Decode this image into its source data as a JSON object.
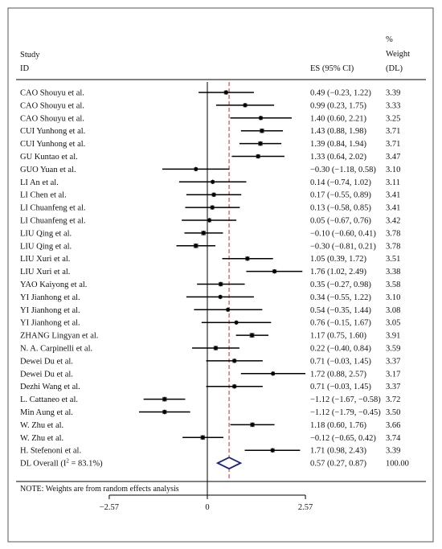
{
  "chart_data": {
    "type": "forest",
    "header": {
      "study": [
        "Study",
        "ID"
      ],
      "es": "ES (95% CI)",
      "weight": [
        "%",
        "Weight",
        "(DL)"
      ]
    },
    "studies": [
      {
        "label": "CAO Shouyu et al.",
        "es": 0.49,
        "lo": -0.23,
        "hi": 1.22,
        "es_text": "0.49 (−0.23, 1.22)",
        "weight": "3.39"
      },
      {
        "label": "CAO Shouyu et al.",
        "es": 0.99,
        "lo": 0.23,
        "hi": 1.75,
        "es_text": "0.99 (0.23, 1.75)",
        "weight": "3.33"
      },
      {
        "label": "CAO Shouyu et al.",
        "es": 1.4,
        "lo": 0.6,
        "hi": 2.21,
        "es_text": "1.40 (0.60, 2.21)",
        "weight": "3.25"
      },
      {
        "label": "CUI Yunhong et al.",
        "es": 1.43,
        "lo": 0.88,
        "hi": 1.98,
        "es_text": "1.43 (0.88, 1.98)",
        "weight": "3.71"
      },
      {
        "label": "CUI Yunhong et al.",
        "es": 1.39,
        "lo": 0.84,
        "hi": 1.94,
        "es_text": "1.39 (0.84, 1.94)",
        "weight": "3.71"
      },
      {
        "label": "GU Kuntao et al.",
        "es": 1.33,
        "lo": 0.64,
        "hi": 2.02,
        "es_text": "1.33 (0.64, 2.02)",
        "weight": "3.47"
      },
      {
        "label": "GUO Yuan et al.",
        "es": -0.3,
        "lo": -1.18,
        "hi": 0.58,
        "es_text": "−0.30 (−1.18, 0.58)",
        "weight": "3.10"
      },
      {
        "label": "LI An et al.",
        "es": 0.14,
        "lo": -0.74,
        "hi": 1.02,
        "es_text": "0.14 (−0.74, 1.02)",
        "weight": "3.11"
      },
      {
        "label": "LI Chen et al.",
        "es": 0.17,
        "lo": -0.55,
        "hi": 0.89,
        "es_text": "0.17 (−0.55, 0.89)",
        "weight": "3.41"
      },
      {
        "label": "LI Chuanfeng et al.",
        "es": 0.13,
        "lo": -0.58,
        "hi": 0.85,
        "es_text": "0.13 (−0.58, 0.85)",
        "weight": "3.41"
      },
      {
        "label": "LI Chuanfeng et al.",
        "es": 0.05,
        "lo": -0.67,
        "hi": 0.76,
        "es_text": "0.05 (−0.67, 0.76)",
        "weight": "3.42"
      },
      {
        "label": "LIU Qing et al.",
        "es": -0.1,
        "lo": -0.6,
        "hi": 0.41,
        "es_text": "−0.10 (−0.60, 0.41)",
        "weight": "3.78"
      },
      {
        "label": "LIU Qing et al.",
        "es": -0.3,
        "lo": -0.81,
        "hi": 0.21,
        "es_text": "−0.30 (−0.81, 0.21)",
        "weight": "3.78"
      },
      {
        "label": "LIU Xuri et al.",
        "es": 1.05,
        "lo": 0.39,
        "hi": 1.72,
        "es_text": "1.05 (0.39, 1.72)",
        "weight": "3.51"
      },
      {
        "label": "LIU Xuri et al.",
        "es": 1.76,
        "lo": 1.02,
        "hi": 2.49,
        "es_text": "1.76 (1.02, 2.49)",
        "weight": "3.38"
      },
      {
        "label": "YAO Kaiyong et al.",
        "es": 0.35,
        "lo": -0.27,
        "hi": 0.98,
        "es_text": "0.35 (−0.27, 0.98)",
        "weight": "3.58"
      },
      {
        "label": "YI Jianhong et al.",
        "es": 0.34,
        "lo": -0.55,
        "hi": 1.22,
        "es_text": "0.34 (−0.55, 1.22)",
        "weight": "3.10"
      },
      {
        "label": "YI Jianhong et al.",
        "es": 0.54,
        "lo": -0.35,
        "hi": 1.44,
        "es_text": "0.54 (−0.35, 1.44)",
        "weight": "3.08"
      },
      {
        "label": "YI Jianhong et al.",
        "es": 0.76,
        "lo": -0.15,
        "hi": 1.67,
        "es_text": "0.76 (−0.15, 1.67)",
        "weight": "3.05"
      },
      {
        "label": "ZHANG Lingyan et al.",
        "es": 1.17,
        "lo": 0.75,
        "hi": 1.6,
        "es_text": "1.17 (0.75, 1.60)",
        "weight": "3.91"
      },
      {
        "label": "N. A. Carpinelli et al.",
        "es": 0.22,
        "lo": -0.4,
        "hi": 0.84,
        "es_text": "0.22 (−0.40, 0.84)",
        "weight": "3.59"
      },
      {
        "label": "Dewei Du et al.",
        "es": 0.71,
        "lo": -0.03,
        "hi": 1.45,
        "es_text": "0.71 (−0.03, 1.45)",
        "weight": "3.37"
      },
      {
        "label": "Dewei Du et al.",
        "es": 1.72,
        "lo": 0.88,
        "hi": 2.57,
        "es_text": "1.72 (0.88, 2.57)",
        "weight": "3.17"
      },
      {
        "label": "Dezhi Wang et al.",
        "es": 0.71,
        "lo": -0.03,
        "hi": 1.45,
        "es_text": "0.71 (−0.03, 1.45)",
        "weight": "3.37"
      },
      {
        "label": "L. Cattaneo et al.",
        "es": -1.12,
        "lo": -1.67,
        "hi": -0.58,
        "es_text": "−1.12 (−1.67, −0.58)",
        "weight": "3.72"
      },
      {
        "label": "Min Aung et al.",
        "es": -1.12,
        "lo": -1.79,
        "hi": -0.45,
        "es_text": "−1.12 (−1.79, −0.45)",
        "weight": "3.50"
      },
      {
        "label": "W. Zhu et al.",
        "es": 1.18,
        "lo": 0.6,
        "hi": 1.76,
        "es_text": "1.18 (0.60, 1.76)",
        "weight": "3.66"
      },
      {
        "label": "W. Zhu et al.",
        "es": -0.12,
        "lo": -0.65,
        "hi": 0.42,
        "es_text": "−0.12 (−0.65, 0.42)",
        "weight": "3.74"
      },
      {
        "label": "H. Stefenoni et al.",
        "es": 1.71,
        "lo": 0.98,
        "hi": 2.43,
        "es_text": "1.71 (0.98, 2.43)",
        "weight": "3.39"
      }
    ],
    "overall": {
      "label_prefix": "DL Overall",
      "label_i2": "(I",
      "label_sup": "2",
      "label_suffix": " = 83.1%)",
      "es": 0.57,
      "lo": 0.27,
      "hi": 0.87,
      "es_text": "0.57 (0.27, 0.87)",
      "weight": "100.00"
    },
    "note": "NOTE: Weights are from random effects analysis",
    "x_ticks": [
      {
        "value": -2.57,
        "label": "−2.57"
      },
      {
        "value": 0,
        "label": "0"
      },
      {
        "value": 2.57,
        "label": "2.57"
      }
    ],
    "xlim": [
      -2.57,
      2.57
    ],
    "colors": {
      "ci_line": "#000000",
      "marker": "#555555",
      "overall_diamond": "#1a237e",
      "null_line": "#000000",
      "overall_line": "#c62828",
      "border": "#555555"
    }
  }
}
